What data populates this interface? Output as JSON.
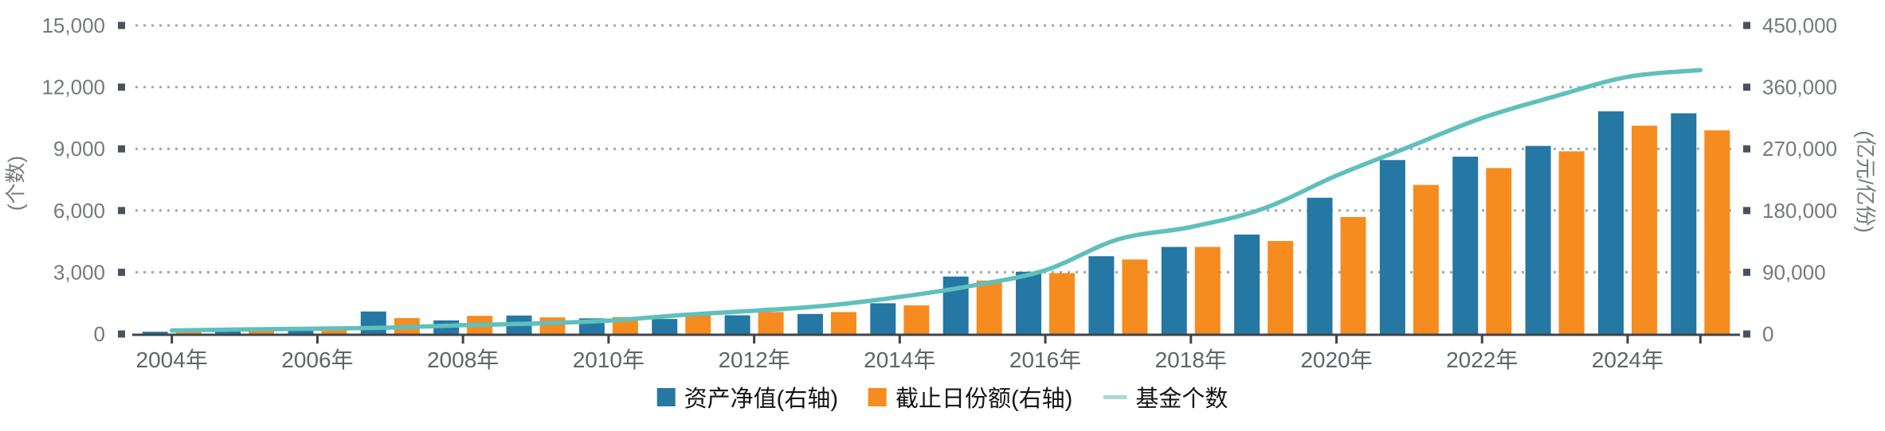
{
  "chart_data": {
    "type": "bar",
    "title": "",
    "categories": [
      "2004",
      "2005",
      "2006",
      "2007",
      "2008",
      "2009",
      "2010",
      "2011",
      "2012",
      "2013",
      "2014",
      "2015",
      "2016",
      "2017",
      "2018",
      "2019",
      "2020",
      "2021",
      "2022",
      "2023",
      "2024",
      "2025"
    ],
    "x_axis": {
      "labels": [
        "2004年",
        "2006年",
        "2008年",
        "2010年",
        "2012年",
        "2014年",
        "2016年",
        "2018年",
        "2020年",
        "2022年",
        "2024年"
      ],
      "label_every_n_categories": 2
    },
    "left_axis": {
      "title": "(个数)",
      "min": 0,
      "max": 15000,
      "tick_values": [
        0,
        3000,
        6000,
        9000,
        12000,
        15000
      ],
      "tick_labels": [
        "0",
        "3,000",
        "6,000",
        "9,000",
        "12,000",
        "15,000"
      ]
    },
    "right_axis": {
      "title": "(亿元/亿份)",
      "min": 0,
      "max": 450000,
      "tick_values": [
        0,
        90000,
        180000,
        270000,
        360000,
        450000
      ],
      "tick_labels": [
        "0",
        "90,000",
        "180,000",
        "270,000",
        "360,000",
        "450,000"
      ]
    },
    "grid": "dotted",
    "legend_position": "bottom",
    "series": [
      {
        "name": "资产净值(右轴)",
        "type": "bar",
        "axis": "right",
        "color": "#2577a4",
        "values": [
          3300,
          4700,
          7300,
          32800,
          19800,
          26900,
          22800,
          21900,
          27300,
          29200,
          44800,
          83800,
          90800,
          113400,
          127000,
          145000,
          198700,
          253700,
          258600,
          274300,
          324700,
          321900
        ]
      },
      {
        "name": "截止日份额(右轴)",
        "type": "bar",
        "axis": "right",
        "color": "#f68c1f",
        "values": [
          3100,
          4700,
          5200,
          23200,
          26500,
          24200,
          24800,
          27000,
          32100,
          32000,
          41700,
          78000,
          88800,
          108700,
          127000,
          135600,
          170600,
          217400,
          242000,
          266400,
          303800,
          297100
        ]
      },
      {
        "name": "基金个数",
        "type": "line",
        "axis": "left",
        "color": "#5fc0bd",
        "values": [
          170,
          220,
          260,
          310,
          430,
          510,
          650,
          920,
          1130,
          1380,
          1800,
          2350,
          3100,
          4600,
          5200,
          6100,
          7700,
          9100,
          10500,
          11550,
          12500,
          12830
        ]
      }
    ]
  },
  "legend": {
    "items": [
      {
        "label": "资产净值(右轴)",
        "marker": "square",
        "color": "#2577a4"
      },
      {
        "label": "截止日份额(右轴)",
        "marker": "square",
        "color": "#f68c1f"
      },
      {
        "label": "基金个数",
        "marker": "line",
        "color": "#a6d9d7"
      }
    ]
  },
  "style": {
    "axis_text_color": "#75797f",
    "x_text_color": "#606468",
    "axis_line_color": "#3f444c",
    "tick_square_color": "#49535f",
    "grid_color": "#a3a7ad",
    "background": "#ffffff"
  }
}
